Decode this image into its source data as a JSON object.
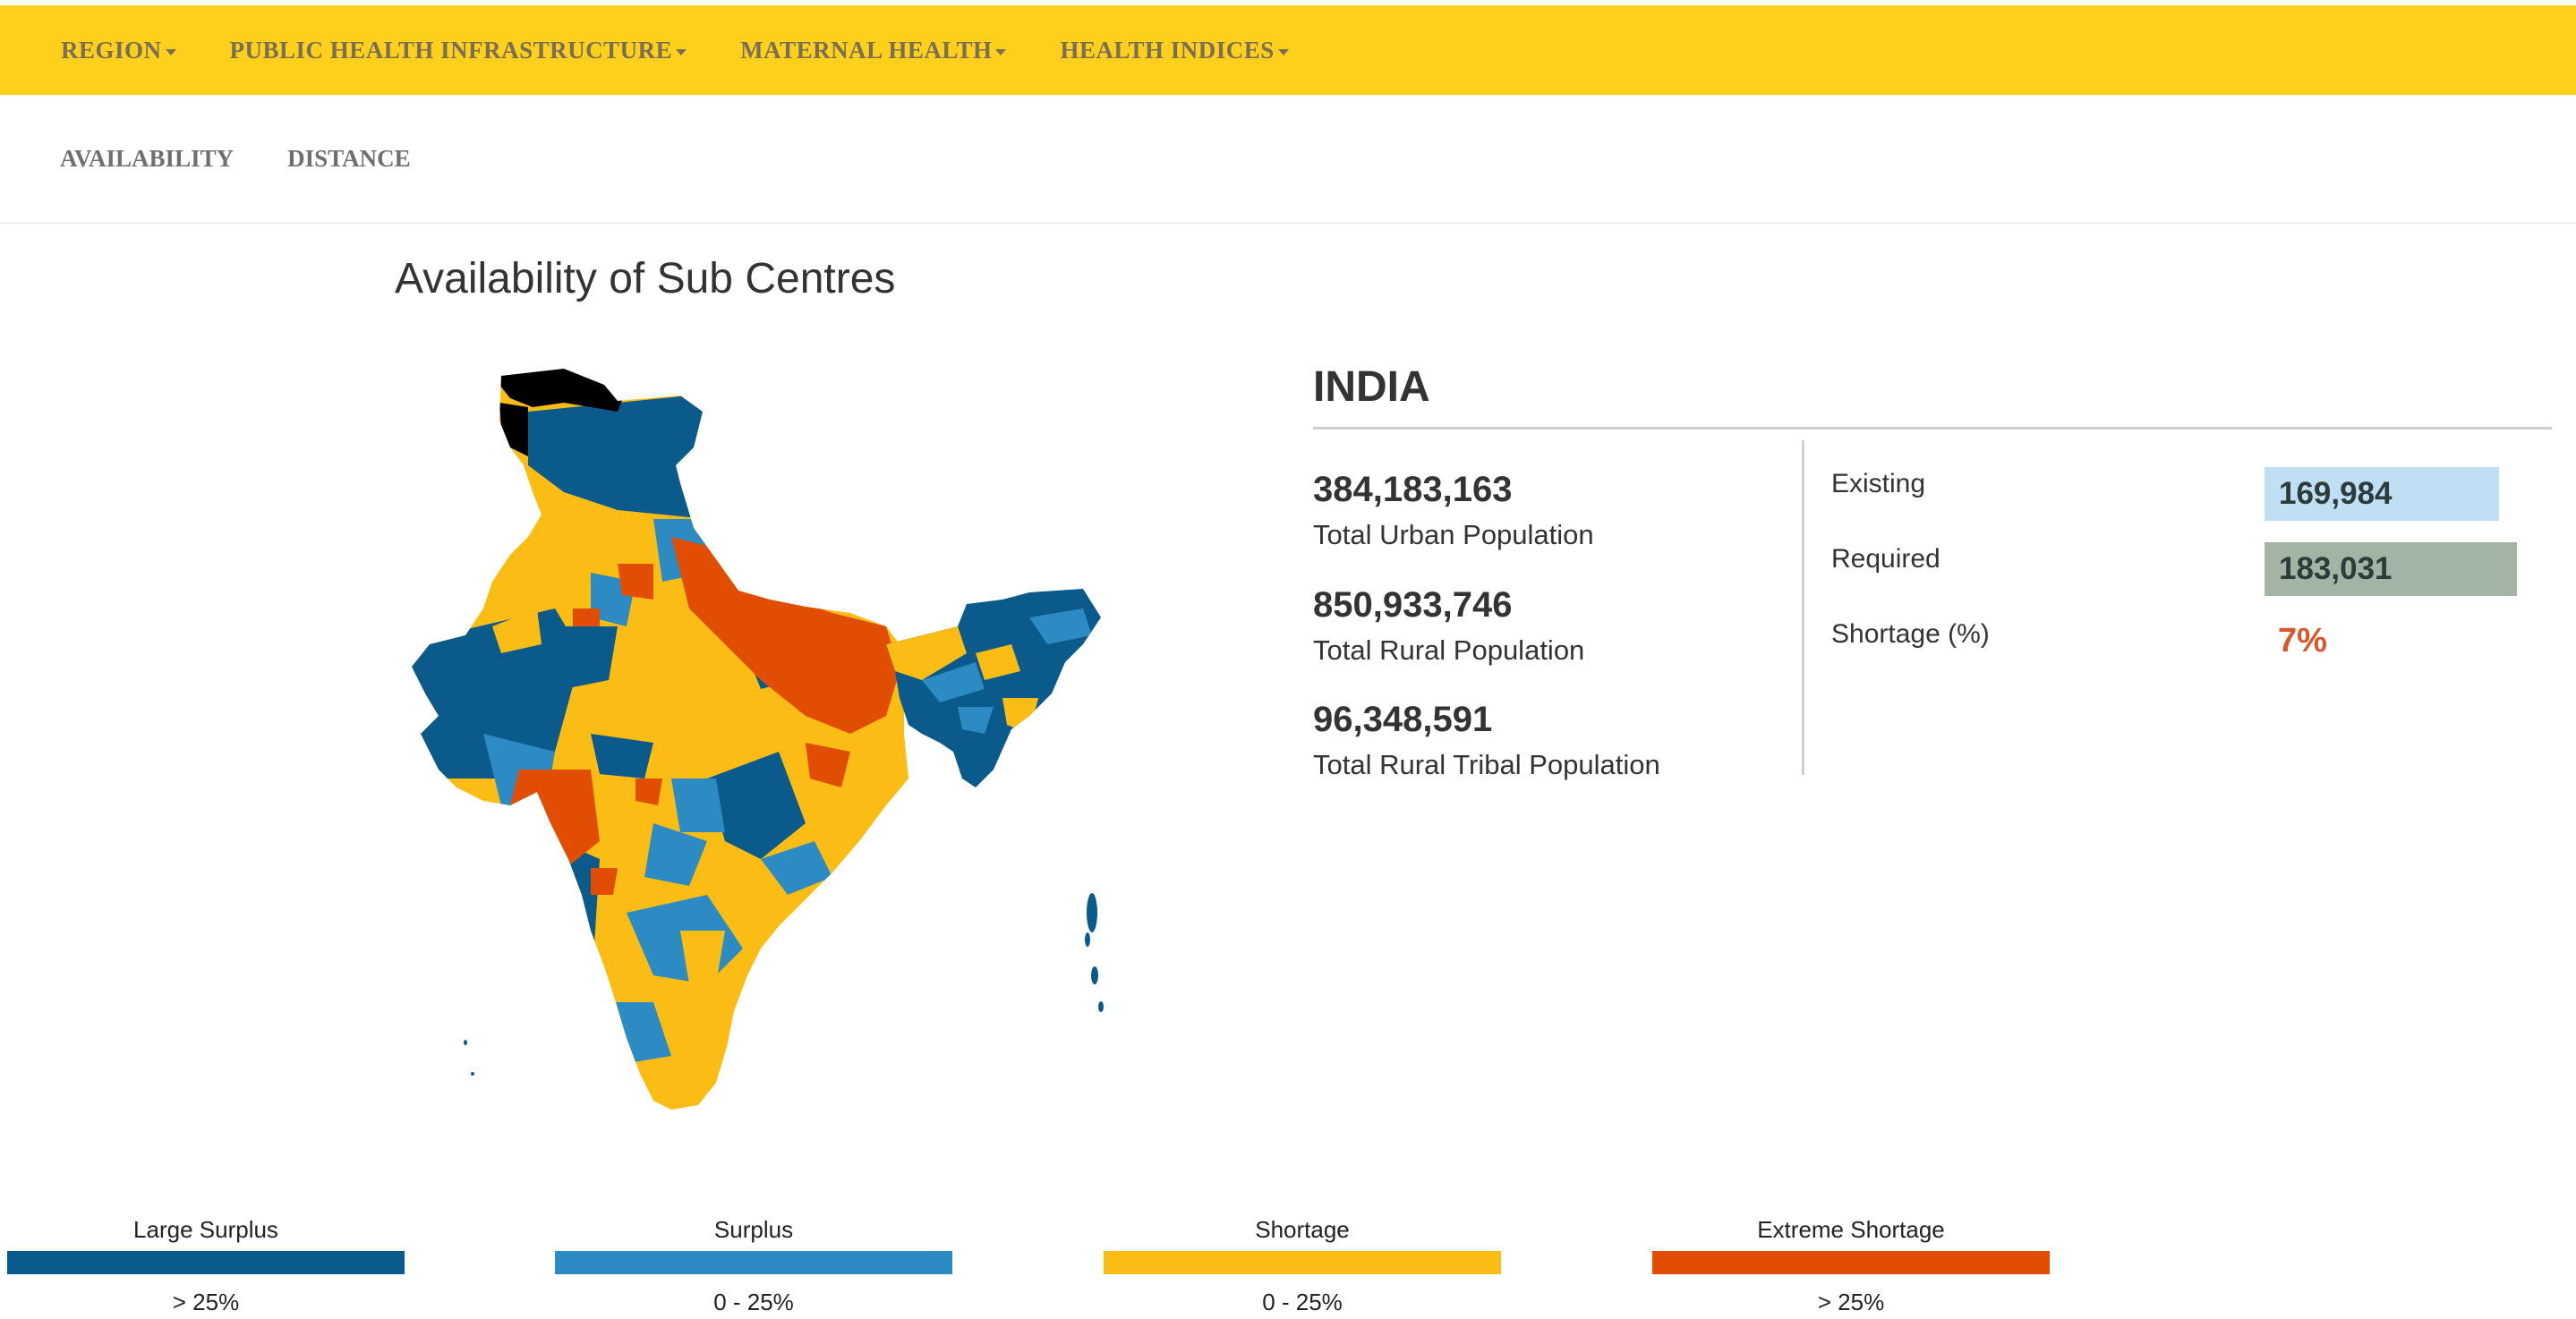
{
  "nav": {
    "items": [
      {
        "label": "REGION"
      },
      {
        "label": "PUBLIC HEALTH INFRASTRUCTURE"
      },
      {
        "label": "MATERNAL HEALTH"
      },
      {
        "label": "HEALTH INDICES"
      }
    ]
  },
  "subnav": {
    "items": [
      {
        "label": "AVAILABILITY"
      },
      {
        "label": "DISTANCE"
      }
    ]
  },
  "page": {
    "title": "Availability of Sub Centres"
  },
  "region": {
    "name": "INDIA"
  },
  "stats": [
    {
      "value": "384,183,163",
      "label": "Total Urban Population"
    },
    {
      "value": "850,933,746",
      "label": "Total Rural Population"
    },
    {
      "value": "96,348,591",
      "label": "Total Rural Tribal Population"
    }
  ],
  "comparison": {
    "existing_label": "Existing",
    "existing_value": "169,984",
    "existing_color": "#bfe0f4",
    "required_label": "Required",
    "required_value": "183,031",
    "required_color": "#a2b5a4",
    "shortage_label": "Shortage (%)",
    "shortage_value": "7%",
    "shortage_color": "#d9582b"
  },
  "legend": [
    {
      "title": "Large Surplus",
      "range": "> 25%",
      "color": "#0a5a8c"
    },
    {
      "title": "Surplus",
      "range": "0 - 25%",
      "color": "#2b8bc2"
    },
    {
      "title": "Shortage",
      "range": "0 - 25%",
      "color": "#fbbd14"
    },
    {
      "title": "Extreme Shortage",
      "range": "> 25%",
      "color": "#e14d03"
    }
  ],
  "colors": {
    "nav_bg": "#fecf1b",
    "nav_text": "#7a6e54",
    "map_disputed": "#000000"
  },
  "icons": {
    "nav_dropdown": "caret-down-icon"
  }
}
